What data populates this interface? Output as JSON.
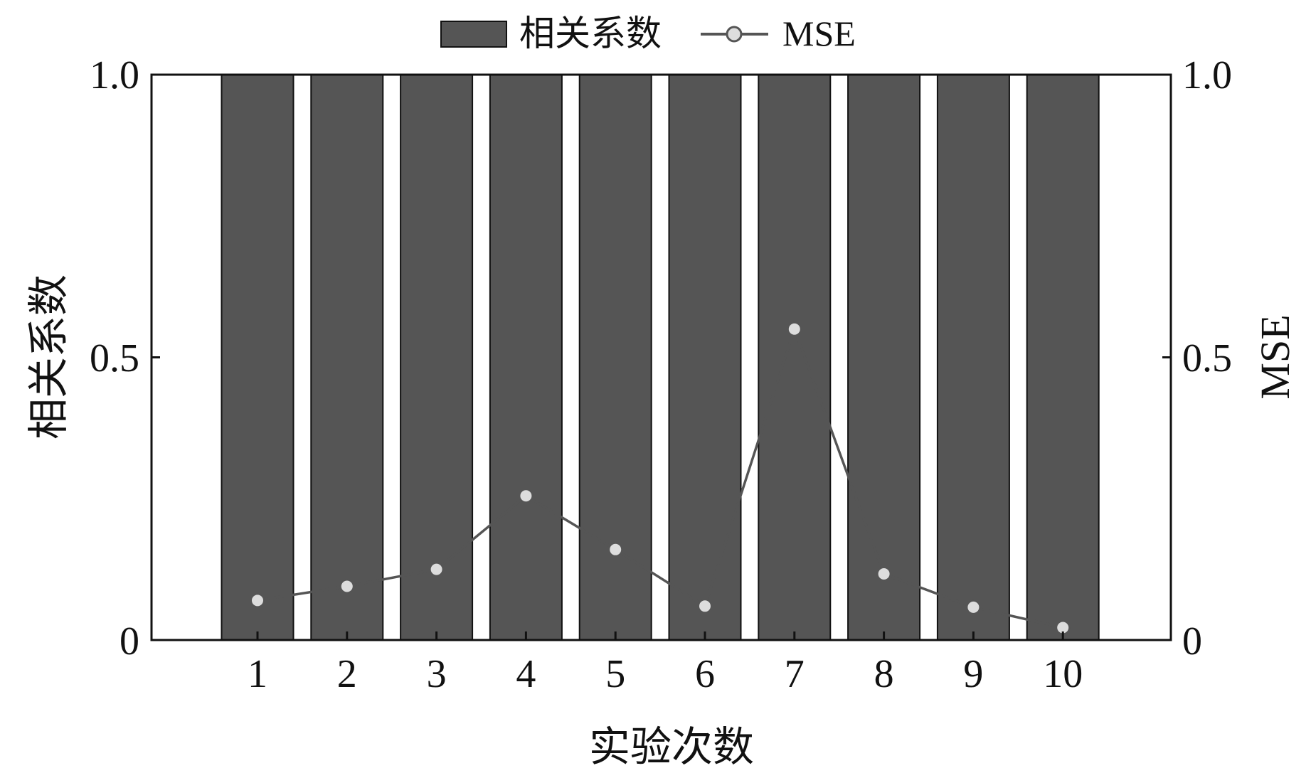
{
  "chart_data": {
    "type": "bar",
    "xlabel": "实验次数",
    "ylabel": "相关系数",
    "y2label": "MSE",
    "categories": [
      "1",
      "2",
      "3",
      "4",
      "5",
      "6",
      "7",
      "8",
      "9",
      "10"
    ],
    "ylim": [
      0,
      1.0
    ],
    "y2lim": [
      0,
      1.0
    ],
    "yticks": [
      "0",
      "0.5",
      "1.0"
    ],
    "y2ticks": [
      "0",
      "0.5",
      "1.0"
    ],
    "grid": false,
    "legend_position": "top-center",
    "series": [
      {
        "name": "相关系数",
        "type": "bar",
        "axis": "left",
        "color": "#555555",
        "values": [
          1.0,
          1.0,
          1.0,
          1.0,
          1.0,
          1.0,
          1.0,
          1.0,
          1.0,
          1.0
        ]
      },
      {
        "name": "MSE",
        "type": "line",
        "axis": "right",
        "color": "#555555",
        "marker_fill": "#dddddd",
        "values": [
          0.07,
          0.095,
          0.125,
          0.255,
          0.16,
          0.06,
          0.55,
          0.117,
          0.058,
          0.022
        ]
      }
    ]
  }
}
